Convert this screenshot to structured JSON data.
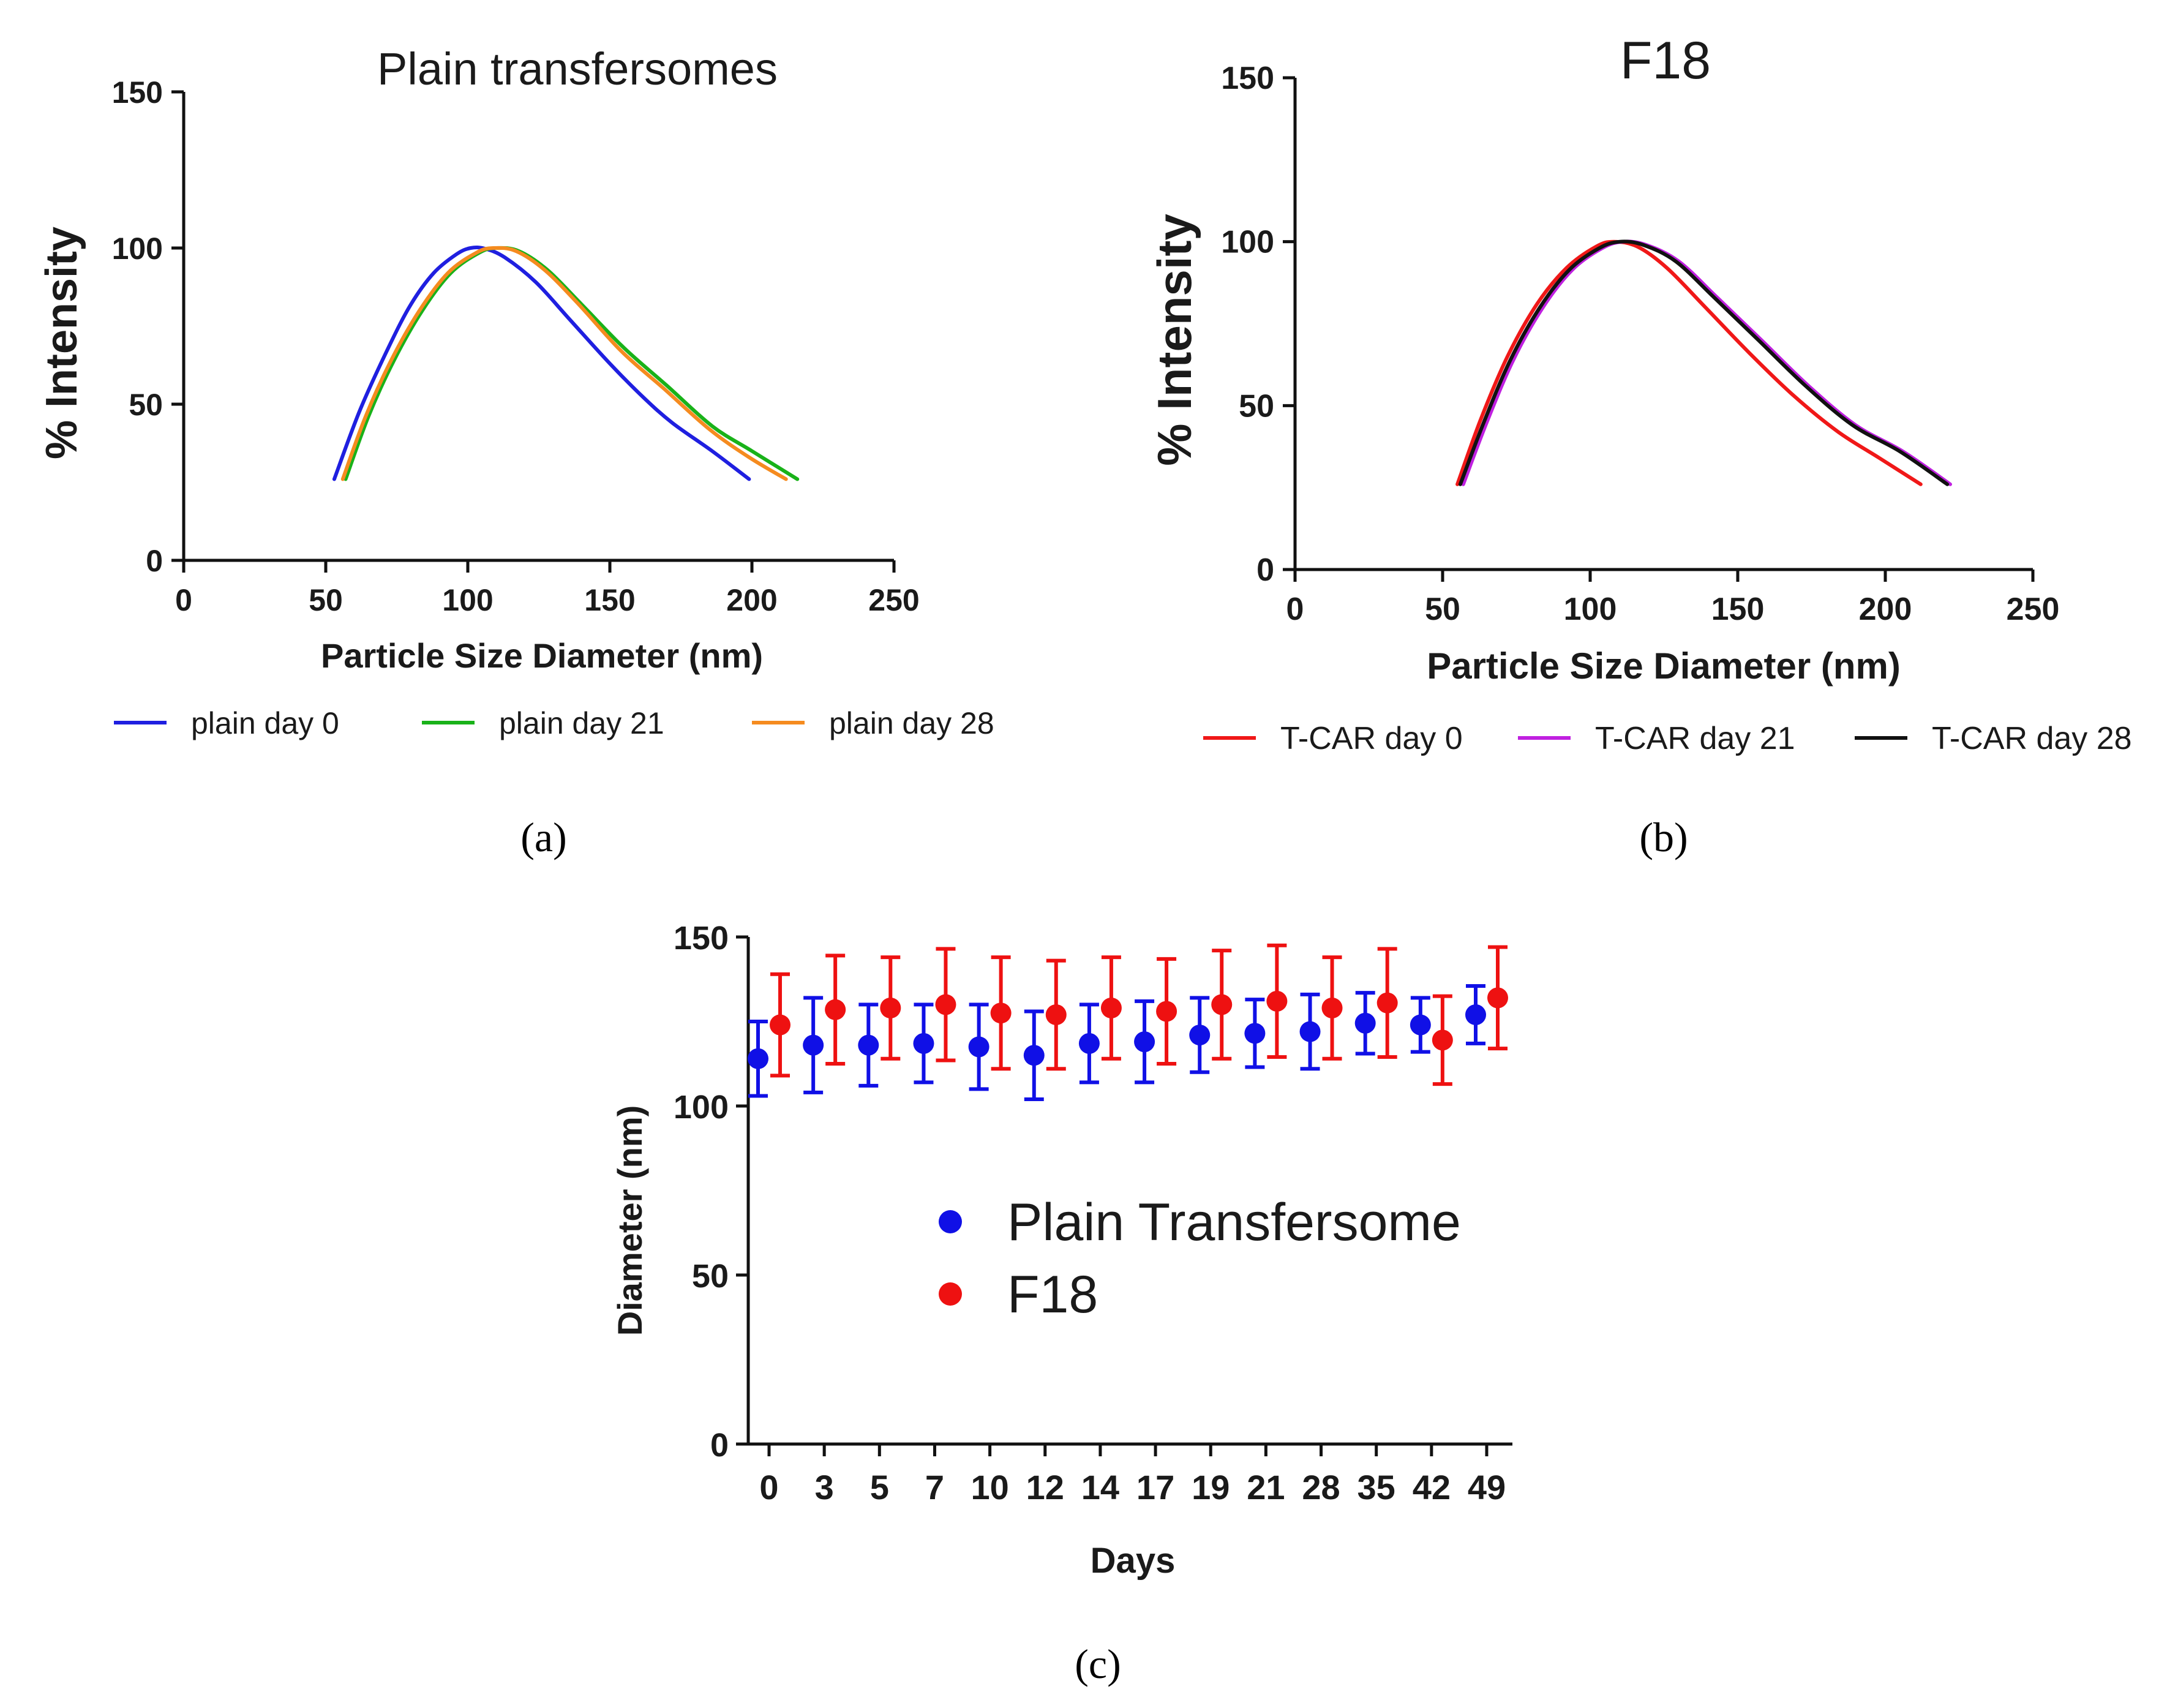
{
  "chart_data": [
    {
      "panel": "(a)",
      "type": "line",
      "title": "Plain transfersomes",
      "xlabel": "Particle Size Diameter (nm)",
      "ylabel": "% Intensity",
      "xlim": [
        0,
        250
      ],
      "ylim": [
        0,
        150
      ],
      "xticks": [
        0,
        50,
        100,
        150,
        200,
        250
      ],
      "yticks": [
        0,
        50,
        100,
        150
      ],
      "legend_position": "bottom",
      "series": [
        {
          "name": "plain day 0",
          "color": "#1f1fe0",
          "points": [
            [
              53,
              26
            ],
            [
              62,
              48
            ],
            [
              72,
              68
            ],
            [
              80,
              82
            ],
            [
              88,
              92
            ],
            [
              96,
              98
            ],
            [
              101,
              100
            ],
            [
              106,
              99.8
            ],
            [
              113,
              97
            ],
            [
              124,
              89
            ],
            [
              136,
              77
            ],
            [
              150,
              63
            ],
            [
              162,
              52
            ],
            [
              172,
              44
            ],
            [
              186,
              35
            ],
            [
              199,
              26
            ]
          ]
        },
        {
          "name": "plain day 21",
          "color": "#19b219",
          "points": [
            [
              57,
              26
            ],
            [
              65,
              46
            ],
            [
              74,
              64
            ],
            [
              84,
              80
            ],
            [
              94,
              92
            ],
            [
              104,
              98.5
            ],
            [
              110,
              100
            ],
            [
              118,
              99
            ],
            [
              128,
              93
            ],
            [
              140,
              82
            ],
            [
              155,
              68
            ],
            [
              170,
              56
            ],
            [
              186,
              43
            ],
            [
              200,
              35
            ],
            [
              216,
              26
            ]
          ]
        },
        {
          "name": "plain day 28",
          "color": "#f58b1f",
          "points": [
            [
              56,
              26
            ],
            [
              64,
              46
            ],
            [
              73,
              64
            ],
            [
              83,
              80
            ],
            [
              93,
              92
            ],
            [
              103,
              98.5
            ],
            [
              109,
              100
            ],
            [
              117,
              99
            ],
            [
              127,
              93
            ],
            [
              139,
              82
            ],
            [
              154,
              67
            ],
            [
              169,
              55
            ],
            [
              185,
              42
            ],
            [
              199,
              33
            ],
            [
              212,
              26
            ]
          ]
        }
      ]
    },
    {
      "panel": "(b)",
      "type": "line",
      "title": "F18",
      "xlabel": "Particle Size Diameter (nm)",
      "ylabel": "% Intensity",
      "xlim": [
        0,
        250
      ],
      "ylim": [
        0,
        150
      ],
      "xticks": [
        0,
        50,
        100,
        150,
        200,
        250
      ],
      "yticks": [
        0,
        50,
        100,
        150
      ],
      "legend_position": "bottom",
      "series": [
        {
          "name": "T-CAR day 0",
          "color": "#f01818",
          "points": [
            [
              55,
              26
            ],
            [
              63,
              46
            ],
            [
              72,
              65
            ],
            [
              82,
              81
            ],
            [
              92,
              92
            ],
            [
              102,
              98.5
            ],
            [
              108,
              100
            ],
            [
              116,
              98.5
            ],
            [
              126,
              92
            ],
            [
              139,
              80
            ],
            [
              154,
              66
            ],
            [
              169,
              53
            ],
            [
              184,
              42
            ],
            [
              198,
              34
            ],
            [
              212,
              26
            ]
          ]
        },
        {
          "name": "T-CAR day 21",
          "color": "#c020e0",
          "points": [
            [
              57,
              26
            ],
            [
              65,
              45
            ],
            [
              74,
              64
            ],
            [
              84,
              80
            ],
            [
              94,
              91.5
            ],
            [
              104,
              98
            ],
            [
              111,
              100
            ],
            [
              119,
              99
            ],
            [
              130,
              94
            ],
            [
              143,
              83
            ],
            [
              158,
              70
            ],
            [
              174,
              56
            ],
            [
              190,
              44
            ],
            [
              206,
              36
            ],
            [
              222,
              26
            ]
          ]
        },
        {
          "name": "T-CAR day 28",
          "color": "#111111",
          "points": [
            [
              56,
              26
            ],
            [
              64,
              45
            ],
            [
              73,
              64
            ],
            [
              83,
              80
            ],
            [
              93,
              91.5
            ],
            [
              103,
              98
            ],
            [
              110,
              100
            ],
            [
              118,
              99
            ],
            [
              129,
              94
            ],
            [
              142,
              83
            ],
            [
              157,
              70
            ],
            [
              173,
              56
            ],
            [
              189,
              44
            ],
            [
              205,
              36
            ],
            [
              221,
              26
            ]
          ]
        }
      ]
    },
    {
      "panel": "(c)",
      "type": "scatter",
      "title": "",
      "xlabel": "Days",
      "ylabel": "Diameter (nm)",
      "ylim": [
        0,
        150
      ],
      "yticks": [
        0,
        50,
        100,
        150
      ],
      "categories": [
        "0",
        "3",
        "5",
        "7",
        "10",
        "12",
        "14",
        "17",
        "19",
        "21",
        "28",
        "35",
        "42",
        "49"
      ],
      "legend_position": "center",
      "series": [
        {
          "name": "Plain Transfersome",
          "color": "#1010e6",
          "values": [
            114,
            118,
            118,
            118.5,
            117.5,
            115,
            118.5,
            119,
            121,
            121.5,
            122,
            124.5,
            124,
            127
          ],
          "errors": [
            11,
            14,
            12,
            11.5,
            12.5,
            13,
            11.5,
            12,
            11,
            10,
            11,
            9,
            8,
            8.5
          ]
        },
        {
          "name": "F18",
          "color": "#ee1111",
          "values": [
            124,
            128.5,
            129,
            130,
            127.5,
            127,
            129,
            128,
            130,
            131,
            129,
            130.5,
            119.5,
            132
          ],
          "errors": [
            15,
            16,
            15,
            16.5,
            16.5,
            16,
            15,
            15.5,
            16,
            16.5,
            15,
            16,
            13,
            15
          ]
        }
      ]
    }
  ],
  "panel_labels": [
    "(a)",
    "(b)",
    "(c)"
  ]
}
